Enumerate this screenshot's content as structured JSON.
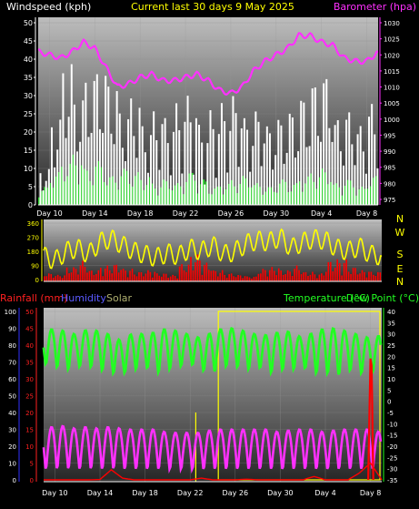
{
  "header": {
    "left": "Windspeed (kph)",
    "center": "Current last 30 days 9 May 2025",
    "right": "Barometer (hpa)"
  },
  "colors": {
    "wind": "#ffffff",
    "gust": "#30d030",
    "barometer": "#ff30ff",
    "direction": "#ffff00",
    "dir_gust": "#ff0000",
    "rain_axis": "#ff2020",
    "humidity_axis": "#ff30ff",
    "temp": "#22ff22",
    "humidity": "#ff30ff",
    "rainfall": "#ff0000",
    "solar": "#ffff00",
    "axis_white": "#ffffff",
    "axis_yellow": "#ffff00"
  },
  "x_days": [
    "Day 10",
    "Day 14",
    "Day 18",
    "Day 22",
    "Day 26",
    "Day 30",
    "Day 4",
    "Day 8"
  ],
  "chart_data": [
    {
      "type": "bar",
      "name": "wind",
      "ylabel_left": "Windspeed (kph)",
      "ylabel_right": "Barometer (hpa)",
      "ylim_left": [
        0,
        50
      ],
      "ylim_right": [
        975,
        1030
      ],
      "yticks_left": [
        0,
        5,
        10,
        15,
        20,
        25,
        30,
        35,
        40,
        45,
        50
      ],
      "yticks_right": [
        975,
        980,
        985,
        990,
        995,
        1000,
        1005,
        1010,
        1015,
        1020,
        1025,
        1030
      ],
      "x": [
        9,
        10,
        11,
        12,
        13,
        14,
        15,
        16,
        17,
        18,
        19,
        20,
        21,
        22,
        23,
        24,
        25,
        26,
        27,
        28,
        29,
        30,
        31,
        32,
        33,
        34,
        35,
        36,
        37,
        38,
        39
      ],
      "series": [
        {
          "values": [
            10,
            24,
            40,
            30,
            36,
            38,
            34,
            26,
            30,
            22,
            26,
            24,
            28,
            30,
            22,
            26,
            28,
            30,
            24,
            26,
            22,
            24,
            26,
            30,
            34,
            36,
            24,
            26,
            22,
            28,
            32
          ]
        },
        {
          "values": [
            5,
            9,
            12,
            14,
            10,
            12,
            8,
            10,
            9,
            8,
            6,
            7,
            6,
            9,
            7,
            5,
            6,
            7,
            8,
            6,
            5,
            7,
            6,
            8,
            9,
            10,
            6,
            7,
            5,
            8,
            9
          ]
        },
        {
          "values": [
            1021,
            1020,
            1019,
            1021,
            1024,
            1022,
            1016,
            1010,
            1011,
            1013,
            1014,
            1012,
            1012,
            1013,
            1014,
            1012,
            1009,
            1008,
            1010,
            1015,
            1018,
            1020,
            1022,
            1026,
            1026,
            1024,
            1023,
            1019,
            1018,
            1018,
            1021
          ]
        }
      ]
    },
    {
      "type": "line",
      "name": "wind-direction",
      "ylim": [
        0,
        360
      ],
      "yticks": [
        0,
        90,
        180,
        270,
        360
      ],
      "compass": [
        "N",
        "W",
        "S",
        "E",
        "N"
      ],
      "x": [
        9,
        10,
        11,
        12,
        13,
        14,
        15,
        16,
        17,
        18,
        19,
        20,
        21,
        22,
        23,
        24,
        25,
        26,
        27,
        28,
        29,
        30,
        31,
        32,
        33,
        34,
        35,
        36,
        37,
        38,
        39
      ],
      "series": [
        {
          "values": [
            150,
            120,
            180,
            200,
            160,
            240,
            260,
            220,
            180,
            160,
            140,
            170,
            150,
            200,
            180,
            220,
            160,
            180,
            230,
            250,
            240,
            270,
            200,
            240,
            260,
            250,
            200,
            180,
            210,
            160,
            150
          ]
        },
        {
          "values": [
            40,
            30,
            80,
            120,
            60,
            90,
            100,
            70,
            50,
            60,
            40,
            30,
            100,
            160,
            110,
            60,
            40,
            30,
            20,
            70,
            80,
            60,
            90,
            50,
            40,
            120,
            130,
            80,
            60,
            50,
            40
          ]
        }
      ]
    },
    {
      "type": "line",
      "name": "rain-humidity-temperature",
      "ylabel_left": "Rainfall (mm)",
      "ylabel_left2": "Humidity",
      "ylabel_left3": "Solar",
      "ylabel_right": "Temperature (°C)",
      "ylabel_right2": "Dew Point (°C)",
      "ylim_humidity": [
        0,
        100
      ],
      "ylim_rain": [
        0,
        50
      ],
      "ylim_temp": [
        -35,
        40
      ],
      "yticks_humidity": [
        0,
        10,
        20,
        30,
        40,
        50,
        60,
        70,
        80,
        90,
        100
      ],
      "yticks_rain": [
        0,
        5,
        10,
        15,
        20,
        25,
        30,
        35,
        40,
        45,
        50
      ],
      "yticks_temp": [
        -35,
        -30,
        -25,
        -20,
        -15,
        -10,
        -5,
        0,
        5,
        10,
        15,
        20,
        25,
        30,
        35,
        40
      ],
      "x": [
        9,
        10,
        11,
        12,
        13,
        14,
        15,
        16,
        17,
        18,
        19,
        20,
        21,
        22,
        23,
        24,
        25,
        26,
        27,
        28,
        29,
        30,
        31,
        32,
        33,
        34,
        35,
        36,
        37,
        38,
        39
      ],
      "series": [
        {
          "values": [
            88,
            90,
            88,
            86,
            90,
            88,
            86,
            82,
            88,
            86,
            88,
            90,
            88,
            86,
            84,
            88,
            90,
            90,
            88,
            86,
            86,
            88,
            88,
            84,
            88,
            90,
            90,
            88,
            86,
            84,
            86
          ]
        },
        {
          "values": [
            68,
            66,
            64,
            66,
            66,
            64,
            62,
            62,
            64,
            66,
            62,
            64,
            66,
            68,
            64,
            62,
            66,
            66,
            64,
            66,
            62,
            64,
            64,
            66,
            62,
            62,
            60,
            64,
            62,
            62,
            64
          ]
        },
        {
          "values": [
            30,
            32,
            32,
            30,
            32,
            30,
            32,
            30,
            30,
            30,
            30,
            28,
            28,
            28,
            28,
            30,
            30,
            30,
            30,
            30,
            30,
            28,
            30,
            30,
            30,
            28,
            30,
            30,
            30,
            30,
            28
          ]
        },
        {
          "values": [
            0,
            0,
            0,
            0,
            0,
            0.1,
            3,
            0.5,
            0,
            0,
            0,
            0,
            0,
            0,
            0.5,
            0,
            0,
            0,
            0.2,
            0,
            0,
            0,
            0,
            0,
            1,
            0,
            0,
            0,
            2,
            5,
            0
          ]
        },
        {
          "values": [
            0,
            0,
            0,
            0,
            0,
            0,
            0,
            0,
            0,
            0,
            0,
            0,
            0,
            0,
            0,
            0,
            0,
            0,
            0,
            0,
            0,
            0,
            0,
            0,
            0,
            0,
            0,
            0,
            0,
            36,
            0
          ]
        }
      ]
    }
  ]
}
